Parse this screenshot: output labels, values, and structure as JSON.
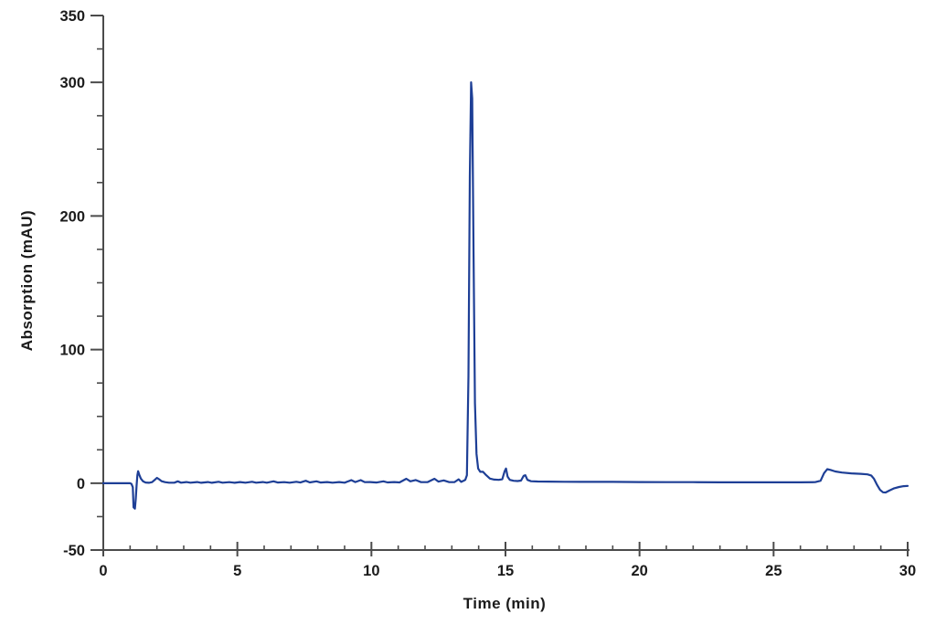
{
  "figure": {
    "background_color": "#ffffff",
    "axis_color": "#4b4b4b",
    "tick_label_color": "#1b1b1b",
    "trace_color": "#1e3f96"
  },
  "chart_data": {
    "type": "line",
    "title": "",
    "xlabel": "Time (min)",
    "ylabel": "Absorption (mAU)",
    "xlim": [
      0,
      30
    ],
    "ylim": [
      -50,
      350
    ],
    "x_major_ticks": [
      0,
      5,
      10,
      15,
      20,
      25,
      30
    ],
    "x_minor_step": 1,
    "y_major_ticks": [
      350,
      300,
      200,
      100,
      0,
      -50
    ],
    "y_minor_step": 25,
    "grid": false,
    "legend": null,
    "description": "HPLC chromatogram: flat baseline with small noise bumps, injection disturbance near 1.1-1.4 min (dip to -19 then spike to +9 mAU), dominant peak of 300 mAU at 13.7 min, minor peaks at 15.0 min (11 mAU) and 15.7 min (6 mAU), broad low hump 27-28.6 min (~10 mAU) followed by a dip to -7 mAU near 29.1 min.",
    "series": [
      {
        "name": "signal",
        "color": "#1e3f96",
        "points": [
          [
            0,
            0
          ],
          [
            0.6,
            0
          ],
          [
            1.0,
            0
          ],
          [
            1.05,
            -0.5
          ],
          [
            1.1,
            -3
          ],
          [
            1.13,
            -18
          ],
          [
            1.18,
            -19
          ],
          [
            1.21,
            -12
          ],
          [
            1.24,
            -2
          ],
          [
            1.27,
            6
          ],
          [
            1.3,
            9
          ],
          [
            1.34,
            6.5
          ],
          [
            1.4,
            3.5
          ],
          [
            1.48,
            1.5
          ],
          [
            1.58,
            0.5
          ],
          [
            1.7,
            0.3
          ],
          [
            1.82,
            0.8
          ],
          [
            1.92,
            2.5
          ],
          [
            2.0,
            4
          ],
          [
            2.08,
            3
          ],
          [
            2.18,
            1.5
          ],
          [
            2.3,
            0.8
          ],
          [
            2.45,
            0.4
          ],
          [
            2.65,
            0.4
          ],
          [
            2.78,
            1.4
          ],
          [
            2.9,
            0.4
          ],
          [
            3.1,
            0.9
          ],
          [
            3.25,
            0.4
          ],
          [
            3.5,
            0.9
          ],
          [
            3.65,
            0.3
          ],
          [
            3.9,
            0.9
          ],
          [
            4.05,
            0.3
          ],
          [
            4.3,
            1.1
          ],
          [
            4.45,
            0.4
          ],
          [
            4.7,
            0.8
          ],
          [
            4.9,
            0.3
          ],
          [
            5.1,
            0.9
          ],
          [
            5.3,
            0.4
          ],
          [
            5.55,
            1.1
          ],
          [
            5.7,
            0.4
          ],
          [
            5.95,
            0.9
          ],
          [
            6.1,
            0.4
          ],
          [
            6.35,
            1.4
          ],
          [
            6.5,
            0.5
          ],
          [
            6.75,
            0.8
          ],
          [
            6.95,
            0.4
          ],
          [
            7.2,
            1.1
          ],
          [
            7.35,
            0.5
          ],
          [
            7.55,
            1.8
          ],
          [
            7.7,
            0.6
          ],
          [
            7.95,
            1.4
          ],
          [
            8.1,
            0.5
          ],
          [
            8.35,
            0.9
          ],
          [
            8.55,
            0.4
          ],
          [
            8.8,
            0.9
          ],
          [
            9.0,
            0.4
          ],
          [
            9.25,
            2.3
          ],
          [
            9.4,
            0.9
          ],
          [
            9.6,
            2.3
          ],
          [
            9.75,
            0.8
          ],
          [
            9.95,
            0.9
          ],
          [
            10.2,
            0.5
          ],
          [
            10.45,
            1.4
          ],
          [
            10.6,
            0.6
          ],
          [
            10.85,
            0.9
          ],
          [
            11.05,
            0.6
          ],
          [
            11.3,
            3.3
          ],
          [
            11.45,
            1.4
          ],
          [
            11.65,
            2.4
          ],
          [
            11.85,
            0.8
          ],
          [
            12.1,
            0.9
          ],
          [
            12.35,
            3.3
          ],
          [
            12.5,
            1.2
          ],
          [
            12.7,
            2.1
          ],
          [
            12.9,
            0.8
          ],
          [
            13.1,
            0.9
          ],
          [
            13.25,
            2.9
          ],
          [
            13.35,
            1.0
          ],
          [
            13.45,
            2.0
          ],
          [
            13.5,
            2.5
          ],
          [
            13.56,
            6
          ],
          [
            13.62,
            80
          ],
          [
            13.67,
            230
          ],
          [
            13.72,
            300
          ],
          [
            13.76,
            288
          ],
          [
            13.81,
            170
          ],
          [
            13.86,
            60
          ],
          [
            13.92,
            22
          ],
          [
            13.98,
            11
          ],
          [
            14.06,
            8.5
          ],
          [
            14.16,
            8.5
          ],
          [
            14.28,
            6
          ],
          [
            14.42,
            3.5
          ],
          [
            14.58,
            2.7
          ],
          [
            14.75,
            2.5
          ],
          [
            14.88,
            3
          ],
          [
            14.97,
            9
          ],
          [
            15.02,
            11
          ],
          [
            15.08,
            5
          ],
          [
            15.16,
            2.5
          ],
          [
            15.3,
            1.8
          ],
          [
            15.45,
            1.6
          ],
          [
            15.58,
            2
          ],
          [
            15.68,
            5.5
          ],
          [
            15.74,
            6
          ],
          [
            15.82,
            2.5
          ],
          [
            15.95,
            1.5
          ],
          [
            16.2,
            1.3
          ],
          [
            16.6,
            1.2
          ],
          [
            17.2,
            1.1
          ],
          [
            18,
            1
          ],
          [
            19,
            1
          ],
          [
            20,
            0.9
          ],
          [
            21,
            0.8
          ],
          [
            22,
            0.8
          ],
          [
            23,
            0.7
          ],
          [
            24,
            0.7
          ],
          [
            25,
            0.7
          ],
          [
            26,
            0.7
          ],
          [
            26.55,
            0.8
          ],
          [
            26.75,
            1.8
          ],
          [
            26.88,
            7.5
          ],
          [
            27.0,
            10.5
          ],
          [
            27.12,
            10
          ],
          [
            27.3,
            8.8
          ],
          [
            27.55,
            8
          ],
          [
            27.9,
            7.4
          ],
          [
            28.25,
            7
          ],
          [
            28.5,
            6.6
          ],
          [
            28.64,
            5.8
          ],
          [
            28.74,
            3.5
          ],
          [
            28.85,
            -1
          ],
          [
            28.97,
            -5
          ],
          [
            29.08,
            -6.8
          ],
          [
            29.18,
            -6.9
          ],
          [
            29.32,
            -5.5
          ],
          [
            29.5,
            -3.8
          ],
          [
            29.68,
            -2.8
          ],
          [
            29.85,
            -2.2
          ],
          [
            30,
            -2
          ]
        ]
      }
    ]
  }
}
